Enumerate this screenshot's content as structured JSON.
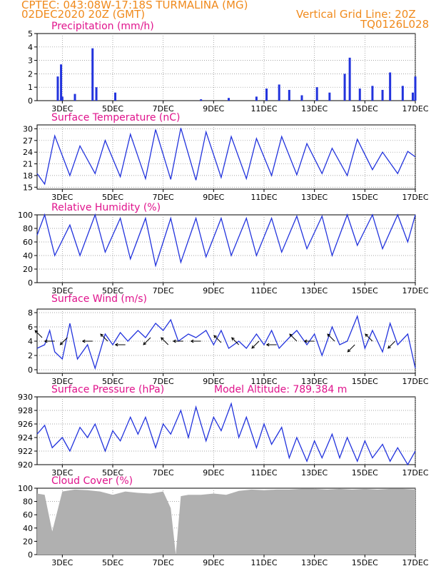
{
  "header": {
    "line1_left": "CPTEC:   043:08W-17:18S   TURMALINA (MG)",
    "line2_left": "02DEC2020 20Z (GMT)",
    "line2_right": "Vertical Grid Line: 20Z",
    "line3_right": "TQ0126L028"
  },
  "colors": {
    "header": "#f08a1c",
    "title": "#e0138c",
    "series": "#2233dd",
    "bar": "#2233dd",
    "cloud": "#b0b0b0",
    "arrow": "#000000"
  },
  "x_axis": {
    "labels": [
      "3DEC",
      "5DEC",
      "7DEC",
      "9DEC",
      "11DEC",
      "13DEC",
      "15DEC",
      "17DEC"
    ],
    "label_days": [
      1,
      3,
      5,
      7,
      9,
      11,
      13,
      15
    ],
    "range_days": [
      0,
      15
    ]
  },
  "chart_data": [
    {
      "id": "precip",
      "type": "bar",
      "title": "Precipitation (mm/h)",
      "yticks": [
        0,
        1,
        2,
        3,
        4,
        5
      ],
      "ylim": [
        0,
        5
      ],
      "values_by_time": [
        [
          0.82,
          1.8
        ],
        [
          0.95,
          2.7
        ],
        [
          1.0,
          0.3
        ],
        [
          1.5,
          0.5
        ],
        [
          2.2,
          3.9
        ],
        [
          2.35,
          1.0
        ],
        [
          3.1,
          0.6
        ],
        [
          6.5,
          0.1
        ],
        [
          7.6,
          0.2
        ],
        [
          8.7,
          0.3
        ],
        [
          9.1,
          0.9
        ],
        [
          9.6,
          1.2
        ],
        [
          10.0,
          0.8
        ],
        [
          10.5,
          0.4
        ],
        [
          11.1,
          1.0
        ],
        [
          11.6,
          0.6
        ],
        [
          12.2,
          2.0
        ],
        [
          12.4,
          3.2
        ],
        [
          12.8,
          0.9
        ],
        [
          13.3,
          1.1
        ],
        [
          13.7,
          0.8
        ],
        [
          14.0,
          2.1
        ],
        [
          14.5,
          1.1
        ],
        [
          14.9,
          0.6
        ],
        [
          15.0,
          1.8
        ]
      ]
    },
    {
      "id": "temp",
      "type": "line",
      "title": "Surface Temperature (nC)",
      "yticks": [
        15,
        18,
        21,
        24,
        27,
        30
      ],
      "ylim": [
        14.5,
        31
      ],
      "series_by_time": [
        [
          0.0,
          18.5
        ],
        [
          0.3,
          15.8
        ],
        [
          0.7,
          28.2
        ],
        [
          1.3,
          18.0
        ],
        [
          1.7,
          25.6
        ],
        [
          2.3,
          18.5
        ],
        [
          2.7,
          27.0
        ],
        [
          3.3,
          17.7
        ],
        [
          3.7,
          28.6
        ],
        [
          4.3,
          17.2
        ],
        [
          4.7,
          29.8
        ],
        [
          5.3,
          17.0
        ],
        [
          5.7,
          30.2
        ],
        [
          6.3,
          16.8
        ],
        [
          6.7,
          29.2
        ],
        [
          7.3,
          17.5
        ],
        [
          7.7,
          28.0
        ],
        [
          8.3,
          17.2
        ],
        [
          8.7,
          27.5
        ],
        [
          9.3,
          18.0
        ],
        [
          9.7,
          28.0
        ],
        [
          10.3,
          18.2
        ],
        [
          10.7,
          26.2
        ],
        [
          11.3,
          18.5
        ],
        [
          11.7,
          25.0
        ],
        [
          12.3,
          18.0
        ],
        [
          12.7,
          27.3
        ],
        [
          13.3,
          19.5
        ],
        [
          13.7,
          24.0
        ],
        [
          14.3,
          18.5
        ],
        [
          14.7,
          24.2
        ],
        [
          15.0,
          22.8
        ]
      ]
    },
    {
      "id": "rh",
      "type": "line",
      "title": "Relative Humidity (%)",
      "yticks": [
        0,
        20,
        40,
        60,
        80,
        100
      ],
      "ylim": [
        0,
        100
      ],
      "series_by_time": [
        [
          0.0,
          70
        ],
        [
          0.3,
          100
        ],
        [
          0.7,
          40
        ],
        [
          1.3,
          85
        ],
        [
          1.7,
          40
        ],
        [
          2.3,
          100
        ],
        [
          2.7,
          45
        ],
        [
          3.3,
          95
        ],
        [
          3.7,
          35
        ],
        [
          4.3,
          95
        ],
        [
          4.7,
          25
        ],
        [
          5.3,
          95
        ],
        [
          5.7,
          30
        ],
        [
          6.3,
          95
        ],
        [
          6.7,
          38
        ],
        [
          7.3,
          95
        ],
        [
          7.7,
          40
        ],
        [
          8.3,
          95
        ],
        [
          8.7,
          40
        ],
        [
          9.3,
          95
        ],
        [
          9.7,
          45
        ],
        [
          10.3,
          98
        ],
        [
          10.7,
          50
        ],
        [
          11.3,
          98
        ],
        [
          11.7,
          40
        ],
        [
          12.3,
          100
        ],
        [
          12.7,
          55
        ],
        [
          13.3,
          100
        ],
        [
          13.7,
          50
        ],
        [
          14.3,
          100
        ],
        [
          14.7,
          60
        ],
        [
          15.0,
          100
        ]
      ]
    },
    {
      "id": "wind",
      "type": "line",
      "title": "Surface Wind (m/s)",
      "yticks": [
        0,
        2,
        4,
        6,
        8
      ],
      "ylim": [
        -0.5,
        8.5
      ],
      "series_by_time": [
        [
          0.0,
          3.0
        ],
        [
          0.3,
          3.5
        ],
        [
          0.5,
          5.5
        ],
        [
          0.7,
          2.5
        ],
        [
          1.0,
          1.5
        ],
        [
          1.3,
          6.5
        ],
        [
          1.6,
          1.5
        ],
        [
          2.0,
          3.5
        ],
        [
          2.3,
          0.2
        ],
        [
          2.7,
          5.0
        ],
        [
          3.0,
          3.5
        ],
        [
          3.3,
          5.2
        ],
        [
          3.6,
          4.0
        ],
        [
          4.0,
          5.5
        ],
        [
          4.3,
          4.5
        ],
        [
          4.7,
          6.5
        ],
        [
          5.0,
          5.5
        ],
        [
          5.3,
          7.0
        ],
        [
          5.6,
          4.0
        ],
        [
          6.0,
          5.0
        ],
        [
          6.3,
          4.5
        ],
        [
          6.7,
          5.5
        ],
        [
          7.0,
          3.5
        ],
        [
          7.3,
          5.5
        ],
        [
          7.6,
          3.0
        ],
        [
          8.0,
          4.0
        ],
        [
          8.3,
          3.0
        ],
        [
          8.7,
          5.0
        ],
        [
          9.0,
          3.5
        ],
        [
          9.3,
          5.5
        ],
        [
          9.6,
          3.0
        ],
        [
          10.0,
          4.5
        ],
        [
          10.3,
          5.5
        ],
        [
          10.7,
          3.5
        ],
        [
          11.0,
          5.0
        ],
        [
          11.3,
          2.0
        ],
        [
          11.7,
          6.0
        ],
        [
          12.0,
          3.5
        ],
        [
          12.3,
          4.0
        ],
        [
          12.7,
          7.5
        ],
        [
          13.0,
          3.0
        ],
        [
          13.3,
          5.5
        ],
        [
          13.7,
          2.5
        ],
        [
          14.0,
          6.5
        ],
        [
          14.3,
          3.5
        ],
        [
          14.7,
          5.0
        ],
        [
          15.0,
          0.2
        ]
      ],
      "arrows": [
        [
          0.2,
          4.5,
          -1,
          1
        ],
        [
          0.7,
          4.0,
          -1,
          0
        ],
        [
          1.2,
          4.5,
          -1,
          -1
        ],
        [
          2.2,
          4.0,
          -1,
          0
        ],
        [
          2.8,
          4.0,
          -1,
          1
        ],
        [
          3.5,
          3.5,
          -1,
          0
        ],
        [
          4.5,
          4.5,
          -1,
          -1
        ],
        [
          5.2,
          3.5,
          -1,
          1
        ],
        [
          5.8,
          4.0,
          -1,
          0
        ],
        [
          6.5,
          4.0,
          -1,
          0
        ],
        [
          7.3,
          3.8,
          -1,
          1
        ],
        [
          8.0,
          3.5,
          -1,
          1
        ],
        [
          8.8,
          4.0,
          -1,
          -1
        ],
        [
          9.5,
          3.5,
          -1,
          0
        ],
        [
          10.3,
          4.0,
          -1,
          1
        ],
        [
          11.0,
          4.0,
          -1,
          0
        ],
        [
          11.8,
          4.0,
          -1,
          1
        ],
        [
          12.6,
          3.5,
          -1,
          -1
        ],
        [
          13.3,
          4.0,
          -1,
          1
        ],
        [
          14.2,
          4.0,
          -1,
          -1
        ]
      ]
    },
    {
      "id": "pressure",
      "type": "line",
      "title": "Surface Pressure (hPa)",
      "note": "Model Altitude: 789.384 m",
      "yticks": [
        920,
        922,
        924,
        926,
        928,
        930
      ],
      "ylim": [
        920,
        930
      ],
      "series_by_time": [
        [
          0.0,
          924.5
        ],
        [
          0.3,
          925.8
        ],
        [
          0.6,
          922.5
        ],
        [
          1.0,
          924.0
        ],
        [
          1.3,
          922.0
        ],
        [
          1.7,
          925.5
        ],
        [
          2.0,
          924.0
        ],
        [
          2.3,
          926.0
        ],
        [
          2.7,
          922.0
        ],
        [
          3.0,
          925.0
        ],
        [
          3.3,
          923.5
        ],
        [
          3.7,
          927.0
        ],
        [
          4.0,
          924.5
        ],
        [
          4.3,
          927.0
        ],
        [
          4.7,
          922.5
        ],
        [
          5.0,
          926.0
        ],
        [
          5.3,
          924.5
        ],
        [
          5.7,
          928.0
        ],
        [
          6.0,
          924.0
        ],
        [
          6.3,
          928.5
        ],
        [
          6.7,
          923.5
        ],
        [
          7.0,
          927.0
        ],
        [
          7.3,
          925.0
        ],
        [
          7.7,
          929.0
        ],
        [
          8.0,
          924.0
        ],
        [
          8.3,
          927.0
        ],
        [
          8.7,
          922.5
        ],
        [
          9.0,
          926.0
        ],
        [
          9.3,
          923.0
        ],
        [
          9.7,
          925.5
        ],
        [
          10.0,
          921.0
        ],
        [
          10.3,
          924.0
        ],
        [
          10.7,
          920.5
        ],
        [
          11.0,
          923.5
        ],
        [
          11.3,
          921.0
        ],
        [
          11.7,
          924.5
        ],
        [
          12.0,
          921.0
        ],
        [
          12.3,
          924.0
        ],
        [
          12.7,
          920.5
        ],
        [
          13.0,
          923.5
        ],
        [
          13.3,
          921.0
        ],
        [
          13.7,
          923.0
        ],
        [
          14.0,
          920.5
        ],
        [
          14.3,
          922.5
        ],
        [
          14.7,
          920.0
        ],
        [
          15.0,
          922.0
        ]
      ]
    },
    {
      "id": "cloud",
      "type": "area",
      "title": "Cloud Cover (%)",
      "yticks": [
        0,
        20,
        40,
        60,
        80,
        100
      ],
      "ylim": [
        0,
        100
      ],
      "series_by_time": [
        [
          0.0,
          92
        ],
        [
          0.3,
          90
        ],
        [
          0.6,
          35
        ],
        [
          1.0,
          95
        ],
        [
          1.5,
          98
        ],
        [
          2.0,
          97
        ],
        [
          2.5,
          95
        ],
        [
          3.0,
          90
        ],
        [
          3.5,
          95
        ],
        [
          4.0,
          93
        ],
        [
          4.5,
          92
        ],
        [
          5.0,
          95
        ],
        [
          5.3,
          70
        ],
        [
          5.5,
          0
        ],
        [
          5.7,
          88
        ],
        [
          6.0,
          90
        ],
        [
          6.5,
          90
        ],
        [
          7.0,
          92
        ],
        [
          7.5,
          90
        ],
        [
          8.0,
          96
        ],
        [
          8.5,
          98
        ],
        [
          9.0,
          97
        ],
        [
          9.5,
          98
        ],
        [
          10.0,
          98
        ],
        [
          10.5,
          99
        ],
        [
          11.0,
          99
        ],
        [
          11.5,
          98
        ],
        [
          12.0,
          99
        ],
        [
          12.5,
          98
        ],
        [
          13.0,
          99
        ],
        [
          13.5,
          98
        ],
        [
          14.0,
          99
        ],
        [
          14.5,
          99
        ],
        [
          15.0,
          98
        ]
      ]
    }
  ]
}
